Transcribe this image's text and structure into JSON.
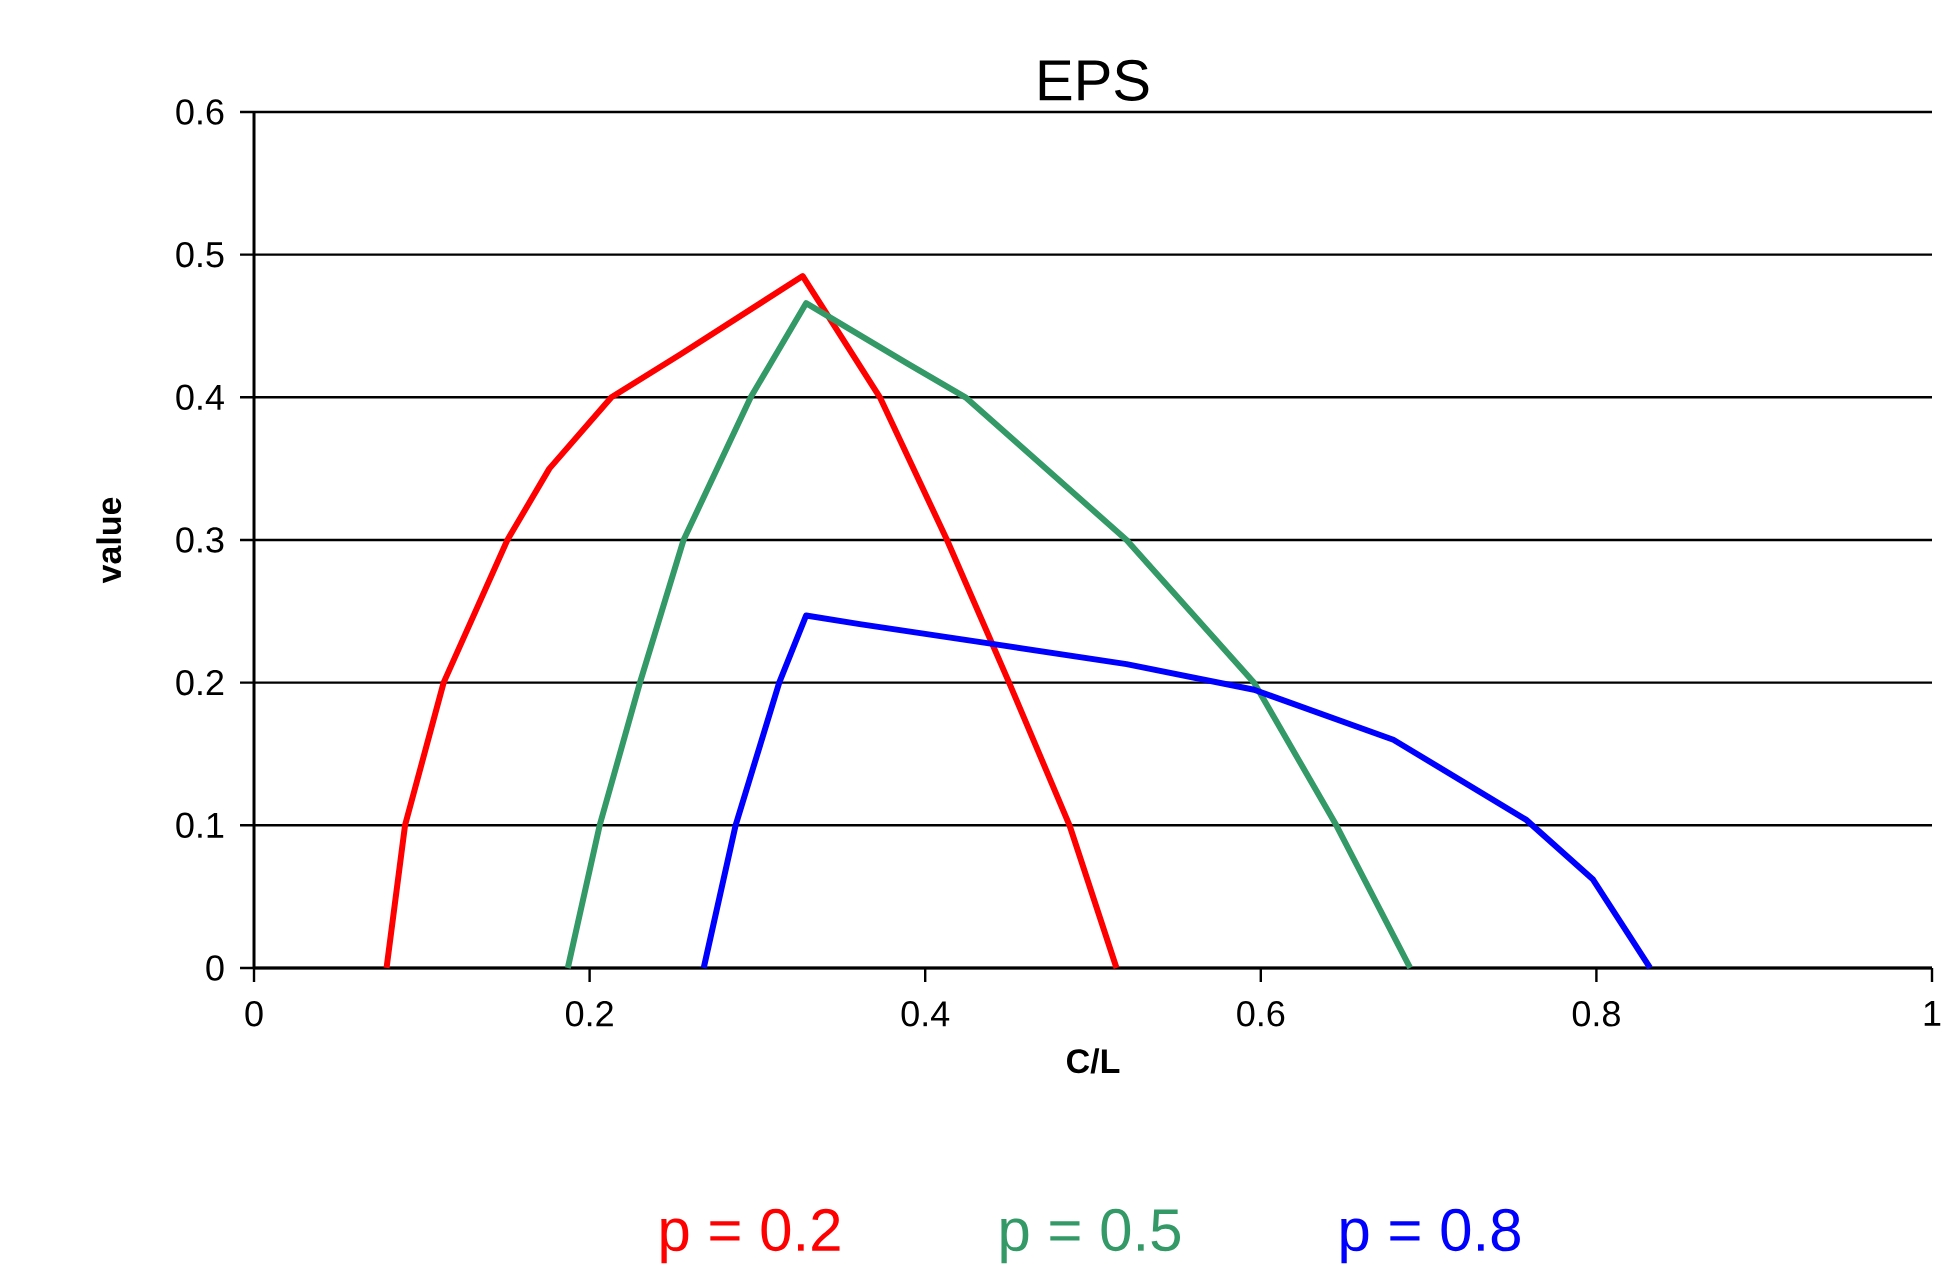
{
  "chart_data": {
    "type": "line",
    "title": "EPS",
    "xlabel": "C/L",
    "ylabel": "value",
    "xlim": [
      0,
      1
    ],
    "xticks": [
      0,
      0.2,
      0.4,
      0.6,
      0.8,
      1
    ],
    "ylim": [
      0,
      0.6
    ],
    "yticks": [
      0,
      0.1,
      0.2,
      0.3,
      0.4,
      0.5,
      0.6
    ],
    "grid": "y",
    "legend": "bottom",
    "marker": "none",
    "line_style": "solid",
    "series": [
      {
        "name": "p = 0.2",
        "color": "#ff0000",
        "x": [
          0.079,
          0.09,
          0.113,
          0.151,
          0.176,
          0.213,
          0.254,
          0.327,
          0.373,
          0.413,
          0.45,
          0.486,
          0.514
        ],
        "values": [
          0,
          0.1,
          0.2,
          0.3,
          0.35,
          0.4,
          0.43,
          0.485,
          0.4,
          0.3,
          0.2,
          0.1,
          0
        ]
      },
      {
        "name": "p = 0.5",
        "color": "#339966",
        "x": [
          0.187,
          0.206,
          0.23,
          0.256,
          0.296,
          0.329,
          0.389,
          0.424,
          0.52,
          0.596,
          0.645,
          0.689
        ],
        "values": [
          0,
          0.1,
          0.2,
          0.3,
          0.4,
          0.466,
          0.424,
          0.4,
          0.3,
          0.2,
          0.1,
          0
        ]
      },
      {
        "name": "p = 0.8",
        "color": "#0000ff",
        "x": [
          0.268,
          0.287,
          0.313,
          0.329,
          0.361,
          0.441,
          0.52,
          0.596,
          0.679,
          0.758,
          0.798,
          0.832
        ],
        "values": [
          0,
          0.1,
          0.2,
          0.247,
          0.241,
          0.227,
          0.213,
          0.195,
          0.16,
          0.104,
          0.062,
          0
        ]
      }
    ]
  }
}
